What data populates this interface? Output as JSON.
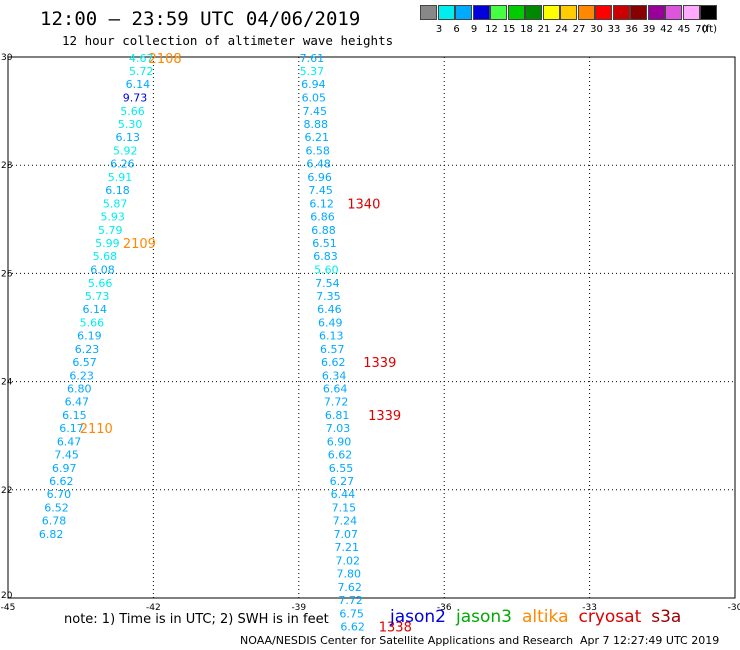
{
  "header": {
    "title": "12:00 — 23:59 UTC 04/06/2019",
    "subtitle": "12 hour collection of altimeter wave heights"
  },
  "colorbar": {
    "unit": "(ft)",
    "bins": [
      {
        "label": "3",
        "color": "#888888"
      },
      {
        "label": "6",
        "color": "#00eeee"
      },
      {
        "label": "9",
        "color": "#00aaff"
      },
      {
        "label": "12",
        "color": "#0000dd"
      },
      {
        "label": "15",
        "color": "#44ff44"
      },
      {
        "label": "18",
        "color": "#00cc00"
      },
      {
        "label": "21",
        "color": "#008800"
      },
      {
        "label": "24",
        "color": "#ffff00"
      },
      {
        "label": "27",
        "color": "#ffcc00"
      },
      {
        "label": "30",
        "color": "#ff8800"
      },
      {
        "label": "33",
        "color": "#ff0000"
      },
      {
        "label": "36",
        "color": "#cc0000"
      },
      {
        "label": "39",
        "color": "#880000"
      },
      {
        "label": "42",
        "color": "#990099"
      },
      {
        "label": "45",
        "color": "#dd55dd"
      },
      {
        "label": "70",
        "color": "#ffaaff"
      },
      {
        "label": "",
        "color": "#000000"
      }
    ]
  },
  "chart_data": {
    "type": "scatter",
    "title": "12:00 — 23:59 UTC 04/06/2019",
    "subtitle": "12 hour collection of altimeter wave heights",
    "xlim": [
      -45,
      -30
    ],
    "ylim": [
      20,
      30
    ],
    "x_ticks": [
      "-45",
      "-42",
      "-39",
      "-36",
      "-33",
      "-30"
    ],
    "y_ticks": [
      "20",
      "22",
      "24",
      "26",
      "28",
      "30"
    ],
    "grid": true,
    "tracks": [
      {
        "points": [
          {
            "lon": -42.25,
            "lat": 29.98,
            "v": "4.67",
            "c": "#00eeee"
          },
          {
            "lon": -42.25,
            "lat": 29.74,
            "v": "5.72",
            "c": "#00eeee"
          },
          {
            "lon": -42.32,
            "lat": 29.5,
            "v": "6.14",
            "c": "#00aaff"
          },
          {
            "lon": -42.38,
            "lat": 29.25,
            "v": "9.73",
            "c": "#0000dd"
          },
          {
            "lon": -42.43,
            "lat": 29.0,
            "v": "5.66",
            "c": "#00eeee"
          },
          {
            "lon": -42.48,
            "lat": 28.76,
            "v": "5.30",
            "c": "#00eeee"
          },
          {
            "lon": -42.53,
            "lat": 28.52,
            "v": "6.13",
            "c": "#00aaff"
          },
          {
            "lon": -42.58,
            "lat": 28.27,
            "v": "5.92",
            "c": "#00eeee"
          },
          {
            "lon": -42.64,
            "lat": 28.03,
            "v": "6.26",
            "c": "#00aaff"
          },
          {
            "lon": -42.69,
            "lat": 27.78,
            "v": "5.91",
            "c": "#00eeee"
          },
          {
            "lon": -42.74,
            "lat": 27.54,
            "v": "6.18",
            "c": "#00aaff"
          },
          {
            "lon": -42.79,
            "lat": 27.29,
            "v": "5.87",
            "c": "#00eeee"
          },
          {
            "lon": -42.84,
            "lat": 27.05,
            "v": "5.93",
            "c": "#00eeee"
          },
          {
            "lon": -42.89,
            "lat": 26.8,
            "v": "5.79",
            "c": "#00eeee"
          },
          {
            "lon": -42.95,
            "lat": 26.56,
            "v": "5.99",
            "c": "#00eeee"
          },
          {
            "lon": -43.0,
            "lat": 26.32,
            "v": "5.68",
            "c": "#00eeee"
          },
          {
            "lon": -43.05,
            "lat": 26.07,
            "v": "6.08",
            "c": "#00aaff"
          },
          {
            "lon": -43.1,
            "lat": 25.82,
            "v": "5.66",
            "c": "#00eeee"
          },
          {
            "lon": -43.16,
            "lat": 25.58,
            "v": "5.73",
            "c": "#00eeee"
          },
          {
            "lon": -43.21,
            "lat": 25.34,
            "v": "6.14",
            "c": "#00aaff"
          },
          {
            "lon": -43.27,
            "lat": 25.09,
            "v": "5.66",
            "c": "#00eeee"
          },
          {
            "lon": -43.32,
            "lat": 24.85,
            "v": "6.19",
            "c": "#00aaff"
          },
          {
            "lon": -43.37,
            "lat": 24.6,
            "v": "6.23",
            "c": "#00aaff"
          },
          {
            "lon": -43.42,
            "lat": 24.36,
            "v": "6.57",
            "c": "#00aaff"
          },
          {
            "lon": -43.48,
            "lat": 24.11,
            "v": "6.23",
            "c": "#00aaff"
          },
          {
            "lon": -43.53,
            "lat": 23.87,
            "v": "6.80",
            "c": "#00aaff"
          },
          {
            "lon": -43.58,
            "lat": 23.63,
            "v": "6.47",
            "c": "#00aaff"
          },
          {
            "lon": -43.63,
            "lat": 23.38,
            "v": "6.15",
            "c": "#00aaff"
          },
          {
            "lon": -43.69,
            "lat": 23.14,
            "v": "6.17",
            "c": "#00aaff"
          },
          {
            "lon": -43.74,
            "lat": 22.89,
            "v": "6.47",
            "c": "#00aaff"
          },
          {
            "lon": -43.79,
            "lat": 22.65,
            "v": "7.45",
            "c": "#00aaff"
          },
          {
            "lon": -43.84,
            "lat": 22.4,
            "v": "6.97",
            "c": "#00aaff"
          },
          {
            "lon": -43.9,
            "lat": 22.16,
            "v": "6.62",
            "c": "#00aaff"
          },
          {
            "lon": -43.95,
            "lat": 21.92,
            "v": "6.70",
            "c": "#00aaff"
          },
          {
            "lon": -44.0,
            "lat": 21.67,
            "v": "6.52",
            "c": "#00aaff"
          },
          {
            "lon": -44.05,
            "lat": 21.43,
            "v": "6.78",
            "c": "#00aaff"
          },
          {
            "lon": -44.11,
            "lat": 21.18,
            "v": "6.82",
            "c": "#00aaff"
          }
        ],
        "time_labels": [
          {
            "lon": -42.1,
            "lat": 29.98,
            "v": "2108",
            "c": "#ff8800"
          },
          {
            "lon": -42.63,
            "lat": 26.56,
            "v": "2109",
            "c": "#ff8800"
          },
          {
            "lon": -43.52,
            "lat": 23.14,
            "v": "2110",
            "c": "#ff8800"
          }
        ]
      },
      {
        "points": [
          {
            "lon": -38.73,
            "lat": 29.98,
            "v": "7.61",
            "c": "#00aaff"
          },
          {
            "lon": -38.73,
            "lat": 29.74,
            "v": "5.37",
            "c": "#00eeee"
          },
          {
            "lon": -38.7,
            "lat": 29.5,
            "v": "6.94",
            "c": "#00aaff"
          },
          {
            "lon": -38.69,
            "lat": 29.25,
            "v": "6.05",
            "c": "#00aaff"
          },
          {
            "lon": -38.67,
            "lat": 29.0,
            "v": "7.45",
            "c": "#00aaff"
          },
          {
            "lon": -38.65,
            "lat": 28.76,
            "v": "8.88",
            "c": "#00aaff"
          },
          {
            "lon": -38.63,
            "lat": 28.52,
            "v": "6.21",
            "c": "#00aaff"
          },
          {
            "lon": -38.61,
            "lat": 28.27,
            "v": "6.58",
            "c": "#00aaff"
          },
          {
            "lon": -38.59,
            "lat": 28.03,
            "v": "6.48",
            "c": "#00aaff"
          },
          {
            "lon": -38.57,
            "lat": 27.78,
            "v": "6.96",
            "c": "#00aaff"
          },
          {
            "lon": -38.55,
            "lat": 27.54,
            "v": "7.45",
            "c": "#00aaff"
          },
          {
            "lon": -38.53,
            "lat": 27.29,
            "v": "6.12",
            "c": "#00aaff"
          },
          {
            "lon": -38.51,
            "lat": 27.05,
            "v": "6.86",
            "c": "#00aaff"
          },
          {
            "lon": -38.49,
            "lat": 26.8,
            "v": "6.88",
            "c": "#00aaff"
          },
          {
            "lon": -38.47,
            "lat": 26.56,
            "v": "6.51",
            "c": "#00aaff"
          },
          {
            "lon": -38.45,
            "lat": 26.32,
            "v": "6.83",
            "c": "#00aaff"
          },
          {
            "lon": -38.43,
            "lat": 26.07,
            "v": "5.60",
            "c": "#00eeee"
          },
          {
            "lon": -38.41,
            "lat": 25.82,
            "v": "7.54",
            "c": "#00aaff"
          },
          {
            "lon": -38.39,
            "lat": 25.58,
            "v": "7.35",
            "c": "#00aaff"
          },
          {
            "lon": -38.37,
            "lat": 25.34,
            "v": "6.46",
            "c": "#00aaff"
          },
          {
            "lon": -38.35,
            "lat": 25.09,
            "v": "6.49",
            "c": "#00aaff"
          },
          {
            "lon": -38.33,
            "lat": 24.85,
            "v": "6.13",
            "c": "#00aaff"
          },
          {
            "lon": -38.31,
            "lat": 24.6,
            "v": "6.57",
            "c": "#00aaff"
          },
          {
            "lon": -38.29,
            "lat": 24.36,
            "v": "6.62",
            "c": "#00aaff"
          },
          {
            "lon": -38.27,
            "lat": 24.11,
            "v": "6.34",
            "c": "#00aaff"
          },
          {
            "lon": -38.25,
            "lat": 23.87,
            "v": "6.64",
            "c": "#00aaff"
          },
          {
            "lon": -38.23,
            "lat": 23.63,
            "v": "7.72",
            "c": "#00aaff"
          },
          {
            "lon": -38.21,
            "lat": 23.38,
            "v": "6.81",
            "c": "#00aaff"
          },
          {
            "lon": -38.19,
            "lat": 23.14,
            "v": "7.03",
            "c": "#00aaff"
          },
          {
            "lon": -38.17,
            "lat": 22.89,
            "v": "6.90",
            "c": "#00aaff"
          },
          {
            "lon": -38.15,
            "lat": 22.65,
            "v": "6.62",
            "c": "#00aaff"
          },
          {
            "lon": -38.13,
            "lat": 22.4,
            "v": "6.55",
            "c": "#00aaff"
          },
          {
            "lon": -38.11,
            "lat": 22.16,
            "v": "6.27",
            "c": "#00aaff"
          },
          {
            "lon": -38.09,
            "lat": 21.92,
            "v": "6.44",
            "c": "#00aaff"
          },
          {
            "lon": -38.07,
            "lat": 21.67,
            "v": "7.15",
            "c": "#00aaff"
          },
          {
            "lon": -38.05,
            "lat": 21.43,
            "v": "7.24",
            "c": "#00aaff"
          },
          {
            "lon": -38.03,
            "lat": 21.18,
            "v": "7.07",
            "c": "#00aaff"
          },
          {
            "lon": -38.01,
            "lat": 20.94,
            "v": "7.21",
            "c": "#00aaff"
          },
          {
            "lon": -37.99,
            "lat": 20.69,
            "v": "7.02",
            "c": "#00aaff"
          },
          {
            "lon": -37.97,
            "lat": 20.45,
            "v": "7.80",
            "c": "#00aaff"
          },
          {
            "lon": -37.95,
            "lat": 20.2,
            "v": "7.62",
            "c": "#00aaff"
          },
          {
            "lon": -37.93,
            "lat": 19.96,
            "v": "7.72",
            "c": "#00aaff"
          },
          {
            "lon": -37.91,
            "lat": 19.71,
            "v": "6.75",
            "c": "#00aaff"
          },
          {
            "lon": -37.89,
            "lat": 19.47,
            "v": "6.62",
            "c": "#00aaff"
          }
        ],
        "time_labels": [
          {
            "lon": -38.0,
            "lat": 27.29,
            "v": "1340",
            "c": "#dd0000"
          },
          {
            "lon": -37.67,
            "lat": 24.36,
            "v": "1339",
            "c": "#dd0000"
          },
          {
            "lon": -37.57,
            "lat": 23.38,
            "v": "1339",
            "c": "#dd0000"
          },
          {
            "lon": -37.35,
            "lat": 19.47,
            "v": "1338",
            "c": "#dd0000"
          }
        ]
      }
    ]
  },
  "footer": {
    "note": "note: 1) Time is in UTC; 2) SWH is in feet",
    "legend": [
      {
        "label": "jason2",
        "color": "#0000dd"
      },
      {
        "label": "jason3",
        "color": "#00aa00"
      },
      {
        "label": "altika",
        "color": "#ff8800"
      },
      {
        "label": "cryosat",
        "color": "#dd0000"
      },
      {
        "label": "s3a",
        "color": "#990000"
      }
    ],
    "credit": "NOAA/NESDIS Center for Satellite Applications and Research",
    "timestamp": "Apr  7 12:27:49 UTC 2019"
  }
}
